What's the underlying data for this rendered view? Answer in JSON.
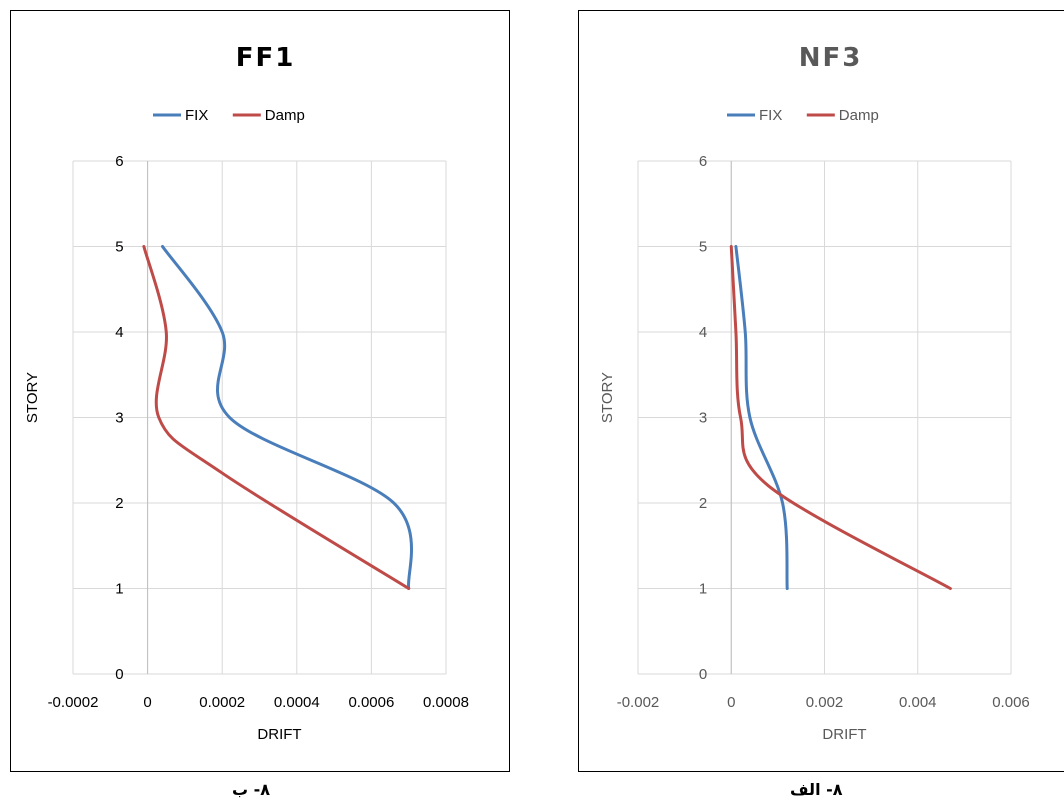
{
  "chart_data": [
    {
      "type": "line",
      "title": "FF1",
      "xlabel": "DRIFT",
      "ylabel": "STORY",
      "xlim": [
        -0.0002,
        0.0008
      ],
      "ylim": [
        0,
        6
      ],
      "xticks": [
        "-0.0002",
        "0",
        "0.0002",
        "0.0004",
        "0.0006",
        "0.0008"
      ],
      "yticks": [
        "0",
        "1",
        "2",
        "3",
        "4",
        "5",
        "6"
      ],
      "grid": "vertical and horizontal",
      "legend_position": "top",
      "caption": "۸- ب",
      "series": [
        {
          "name": "FIX",
          "color": "#4a7ebb",
          "points": [
            [
              0.0007,
              1
            ],
            [
              0.00066,
              2
            ],
            [
              0.00022,
              3
            ],
            [
              0.0002,
              4
            ],
            [
              4e-05,
              5
            ]
          ]
        },
        {
          "name": "Damp",
          "color": "#be4b48",
          "points": [
            [
              0.0007,
              1
            ],
            [
              0.0002,
              2.35
            ],
            [
              3e-05,
              3
            ],
            [
              5e-05,
              4
            ],
            [
              -1e-05,
              5
            ]
          ]
        }
      ]
    },
    {
      "type": "line",
      "title": "NF3",
      "xlabel": "DRIFT",
      "ylabel": "STORY",
      "xlim": [
        -0.002,
        0.006
      ],
      "ylim": [
        0,
        6
      ],
      "xticks": [
        "-0.002",
        "0",
        "0.002",
        "0.004",
        "0.006"
      ],
      "yticks": [
        "0",
        "1",
        "2",
        "3",
        "4",
        "5",
        "6"
      ],
      "grid": "vertical and horizontal",
      "legend_position": "top",
      "caption": "۸- الف",
      "series": [
        {
          "name": "FIX",
          "color": "#4a7ebb",
          "points": [
            [
              0.0012,
              1
            ],
            [
              0.0011,
              2
            ],
            [
              0.0004,
              3
            ],
            [
              0.0003,
              4
            ],
            [
              0.0001,
              5
            ]
          ]
        },
        {
          "name": "Damp",
          "color": "#be4b48",
          "points": [
            [
              0.0047,
              1
            ],
            [
              0.0008,
              2.2
            ],
            [
              0.0002,
              3
            ],
            [
              0.0001,
              4
            ],
            [
              0.0,
              5
            ]
          ]
        }
      ]
    }
  ]
}
